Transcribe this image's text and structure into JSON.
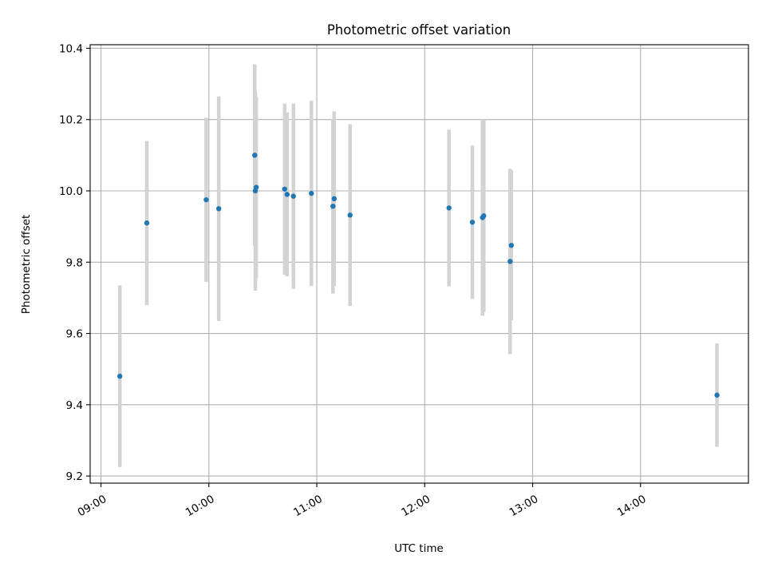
{
  "chart_data": {
    "type": "scatter",
    "title": "Photometric offset variation",
    "xlabel": "UTC time",
    "ylabel": "Photometric offset",
    "xlim": [
      "08:54",
      "15:00"
    ],
    "ylim": [
      9.18,
      10.41
    ],
    "grid": true,
    "x_tick_labels": [
      "09:00",
      "10:00",
      "11:00",
      "12:00",
      "13:00",
      "14:00"
    ],
    "y_tick_labels": [
      "9.2",
      "9.4",
      "9.6",
      "9.8",
      "10.0",
      "10.2",
      "10.4"
    ],
    "y_ticks": [
      9.2,
      9.4,
      9.6,
      9.8,
      10.0,
      10.2,
      10.4
    ],
    "marker_color": "#1f77b4",
    "errorbar_color": "#d3d3d3",
    "points": [
      {
        "x": "09:10:30",
        "y": 9.48,
        "err": 0.255
      },
      {
        "x": "09:25:30",
        "y": 9.91,
        "err": 0.23
      },
      {
        "x": "09:58:30",
        "y": 9.975,
        "err": 0.23
      },
      {
        "x": "10:05:30",
        "y": 9.95,
        "err": 0.315
      },
      {
        "x": "10:25:30",
        "y": 10.1,
        "err": 0.255
      },
      {
        "x": "10:25:50",
        "y": 10.0,
        "err": 0.28
      },
      {
        "x": "10:26:20",
        "y": 10.01,
        "err": 0.255
      },
      {
        "x": "10:42:10",
        "y": 10.005,
        "err": 0.24
      },
      {
        "x": "10:43:30",
        "y": 9.99,
        "err": 0.23
      },
      {
        "x": "10:47:00",
        "y": 9.985,
        "err": 0.26
      },
      {
        "x": "10:57:00",
        "y": 9.993,
        "err": 0.26
      },
      {
        "x": "11:09:00",
        "y": 9.957,
        "err": 0.245
      },
      {
        "x": "11:09:40",
        "y": 9.978,
        "err": 0.245
      },
      {
        "x": "11:18:30",
        "y": 9.932,
        "err": 0.255
      },
      {
        "x": "12:13:30",
        "y": 9.952,
        "err": 0.22
      },
      {
        "x": "12:26:30",
        "y": 9.912,
        "err": 0.215
      },
      {
        "x": "12:32:10",
        "y": 9.925,
        "err": 0.275
      },
      {
        "x": "12:32:50",
        "y": 9.93,
        "err": 0.27
      },
      {
        "x": "12:47:30",
        "y": 9.802,
        "err": 0.26
      },
      {
        "x": "12:48:10",
        "y": 9.847,
        "err": 0.21
      },
      {
        "x": "14:42:30",
        "y": 9.427,
        "err": 0.145
      }
    ]
  }
}
